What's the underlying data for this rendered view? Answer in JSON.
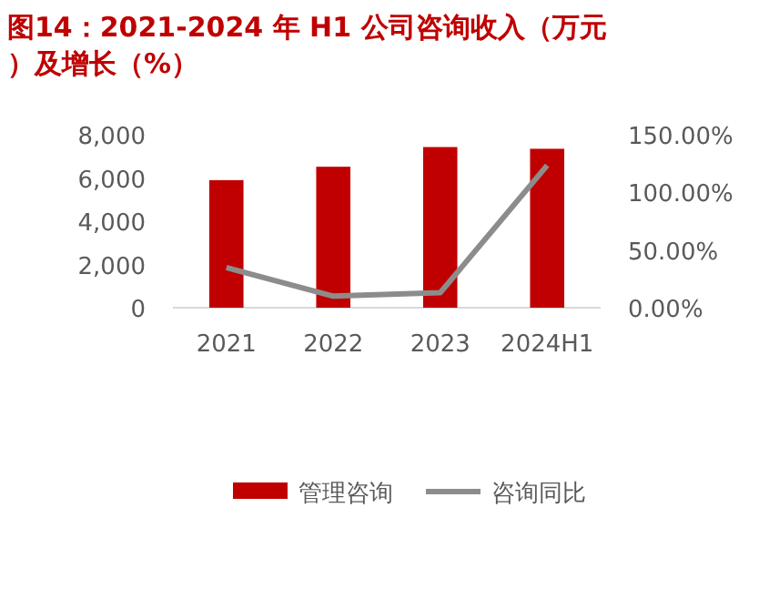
{
  "chart_data": {
    "type": "bar",
    "title": "图14：2021-2024 年 H1 公司咨询收入（万元）及增长（%）",
    "categories": [
      "2021",
      "2022",
      "2023",
      "2024H1"
    ],
    "series": [
      {
        "name": "管理咨询",
        "color": "#c00000",
        "values": [
          5900,
          6520,
          7430,
          7350
        ]
      },
      {
        "name": "咨询同比",
        "color": "#8c8c8c",
        "type": "line",
        "axis": "y2",
        "values": [
          34.8,
          10,
          13,
          123.4
        ]
      }
    ],
    "ylim": [
      0,
      8000
    ],
    "yticks": [
      {
        "value": 0,
        "label": "0"
      },
      {
        "value": 2000,
        "label": "2,000"
      },
      {
        "value": 4000,
        "label": "4,000"
      },
      {
        "value": 6000,
        "label": "6,000"
      },
      {
        "value": 8000,
        "label": "8,000"
      }
    ],
    "y2lim": [
      0,
      150
    ],
    "y2ticks": [
      {
        "value": 0,
        "label": "0.00%"
      },
      {
        "value": 50,
        "label": "50.00%"
      },
      {
        "value": 100,
        "label": "100.00%"
      },
      {
        "value": 150,
        "label": "150.00%"
      }
    ],
    "legend": "bottom"
  }
}
